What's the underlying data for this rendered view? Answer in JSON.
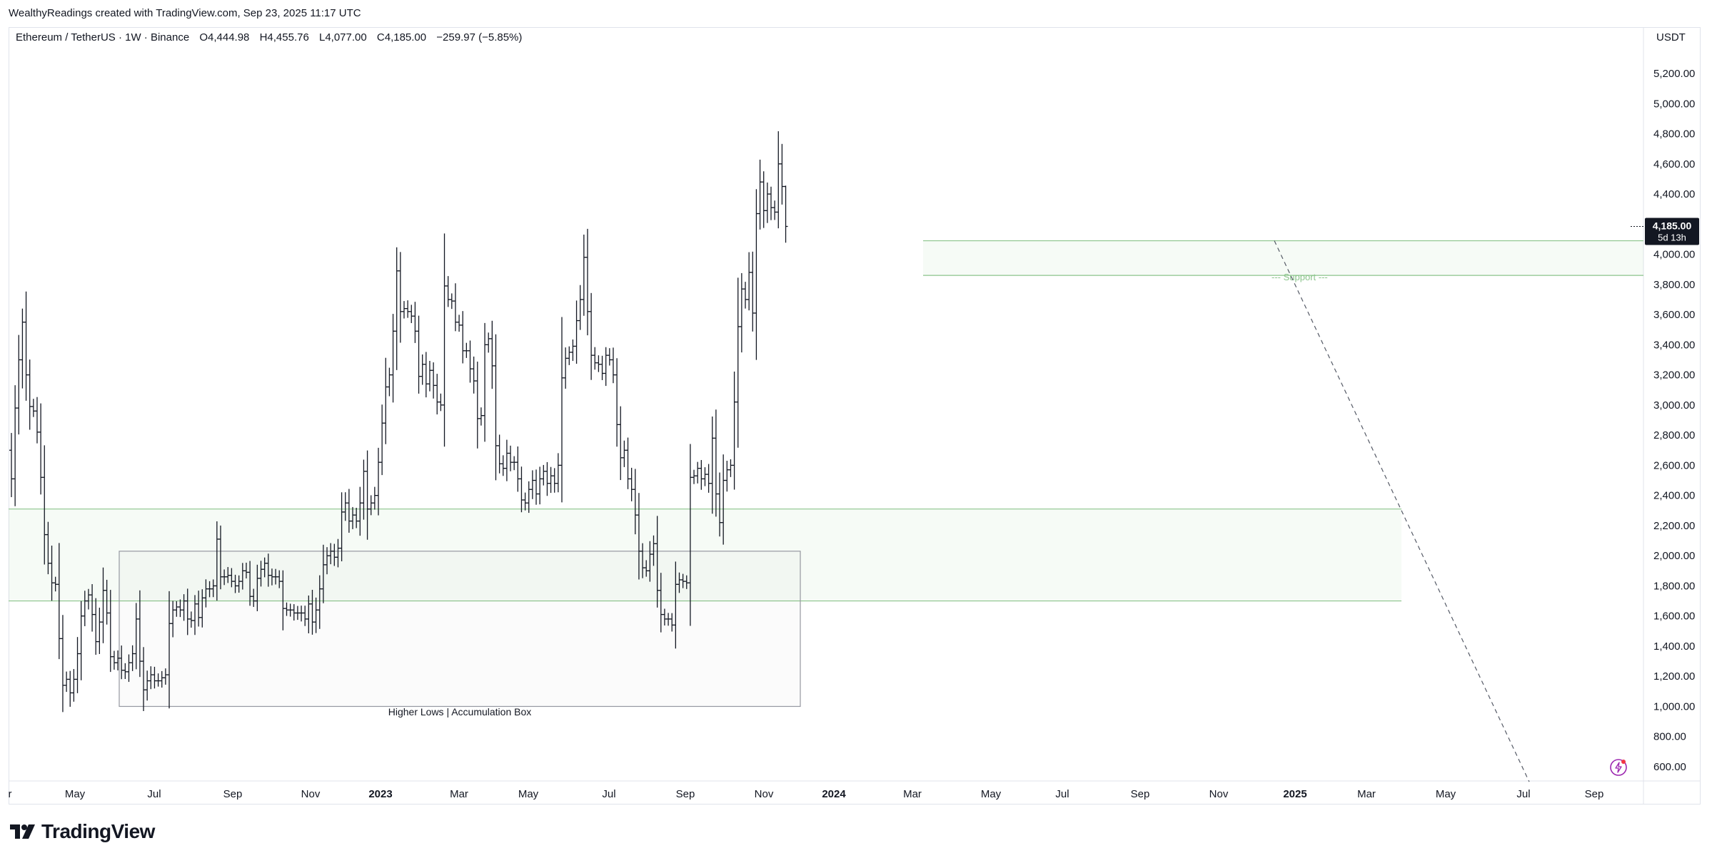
{
  "attribution": "WealthyReadings created with TradingView.com, Sep 23, 2025 11:17 UTC",
  "legend": {
    "symbol": "Ethereum / TetherUS · 1W · Binance",
    "open": "O4,444.98",
    "high": "H4,455.76",
    "low": "L4,077.00",
    "close": "C4,185.00",
    "change": "−259.97 (−5.85%)"
  },
  "currency": "USDT",
  "last_price": {
    "price": "4,185.00",
    "countdown": "5d 13h",
    "value": 4185
  },
  "brand": "TradingView",
  "chart_data": {
    "type": "ohlc",
    "title": "",
    "xlabel": "",
    "ylabel": "",
    "ylim": [
      500,
      5400
    ],
    "grid": false,
    "y_ticks": [
      "600.00",
      "800.00",
      "1,000.00",
      "1,200.00",
      "1,400.00",
      "1,600.00",
      "1,800.00",
      "2,000.00",
      "2,200.00",
      "2,400.00",
      "2,600.00",
      "2,800.00",
      "3,000.00",
      "3,200.00",
      "3,400.00",
      "3,600.00",
      "3,800.00",
      "4,000.00",
      "4,200.00",
      "4,400.00",
      "4,600.00",
      "4,800.00",
      "5,000.00",
      "5,200.00"
    ],
    "x_ticks": [
      {
        "label": "r",
        "bold": false
      },
      {
        "label": "May",
        "bold": false
      },
      {
        "label": "Jul",
        "bold": false
      },
      {
        "label": "Sep",
        "bold": false
      },
      {
        "label": "Nov",
        "bold": false
      },
      {
        "label": "2023",
        "bold": true
      },
      {
        "label": "Mar",
        "bold": false
      },
      {
        "label": "May",
        "bold": false
      },
      {
        "label": "Jul",
        "bold": false
      },
      {
        "label": "Sep",
        "bold": false
      },
      {
        "label": "Nov",
        "bold": false
      },
      {
        "label": "2024",
        "bold": true
      },
      {
        "label": "Mar",
        "bold": false
      },
      {
        "label": "May",
        "bold": false
      },
      {
        "label": "Jul",
        "bold": false
      },
      {
        "label": "Sep",
        "bold": false
      },
      {
        "label": "Nov",
        "bold": false
      },
      {
        "label": "2025",
        "bold": true
      },
      {
        "label": "Mar",
        "bold": false
      },
      {
        "label": "May",
        "bold": false
      },
      {
        "label": "Jul",
        "bold": false
      },
      {
        "label": "Sep",
        "bold": false
      }
    ],
    "zones": [
      {
        "name": "upper-zone",
        "low": 3860,
        "high": 4090,
        "label": "--- Support ---"
      },
      {
        "name": "lower-zone",
        "low": 1700,
        "high": 2310,
        "label": ""
      }
    ],
    "accumulation_box": {
      "label": "Higher Lows | Accumulation Box",
      "low": 1000,
      "high": 2030
    },
    "trendline": {
      "from_price": 4090,
      "to_price": 500
    },
    "closes": [
      2510,
      2980,
      3300,
      3550,
      3200,
      2990,
      2960,
      2820,
      2520,
      2140,
      1950,
      1820,
      1810,
      1450,
      1140,
      1180,
      1090,
      1180,
      1350,
      1600,
      1700,
      1740,
      1610,
      1430,
      1560,
      1770,
      1620,
      1330,
      1290,
      1320,
      1240,
      1230,
      1290,
      1350,
      1580,
      1300,
      1110,
      1170,
      1210,
      1170,
      1170,
      1190,
      1210,
      1550,
      1640,
      1660,
      1640,
      1700,
      1580,
      1570,
      1680,
      1590,
      1720,
      1780,
      1780,
      1800,
      2110,
      1860,
      1860,
      1870,
      1830,
      1800,
      1830,
      1900,
      1890,
      1730,
      1700,
      1850,
      1910,
      1950,
      1870,
      1860,
      1860,
      1830,
      1650,
      1640,
      1640,
      1620,
      1620,
      1620,
      1580,
      1680,
      1560,
      1640,
      1780,
      1940,
      2000,
      2030,
      1990,
      2050,
      2290,
      2350,
      2230,
      2270,
      2230,
      2350,
      2560,
      2310,
      2350,
      2400,
      2620,
      2880,
      3120,
      3200,
      3490,
      3890,
      3620,
      3640,
      3620,
      3590,
      3490,
      3190,
      3270,
      3140,
      3230,
      3130,
      3020,
      3000,
      3790,
      3700,
      3690,
      3550,
      3530,
      3360,
      3360,
      3240,
      3160,
      2910,
      2930,
      3400,
      3440,
      3260,
      2730,
      2610,
      2580,
      2680,
      2620,
      2620,
      2510,
      2370,
      2350,
      2440,
      2500,
      2410,
      2510,
      2560,
      2480,
      2530,
      2480,
      2600,
      3180,
      3310,
      3350,
      3390,
      3560,
      3700,
      3980,
      3620,
      3330,
      3280,
      3270,
      3210,
      3330,
      3300,
      3200,
      2870,
      2650,
      2700,
      2510,
      2440,
      2270,
      2030,
      1920,
      1900,
      2010,
      2080,
      1770,
      1610,
      1580,
      1580,
      1540,
      1810,
      1840,
      1830,
      1820,
      2520,
      2530,
      2580,
      2510,
      2540,
      2480,
      2780,
      2410,
      2220,
      2500,
      2570,
      2600,
      3020,
      3520,
      3770,
      3700,
      3880,
      3610,
      4270,
      4480,
      4290,
      4400,
      4310,
      4280,
      4600,
      4450,
      4185
    ]
  }
}
